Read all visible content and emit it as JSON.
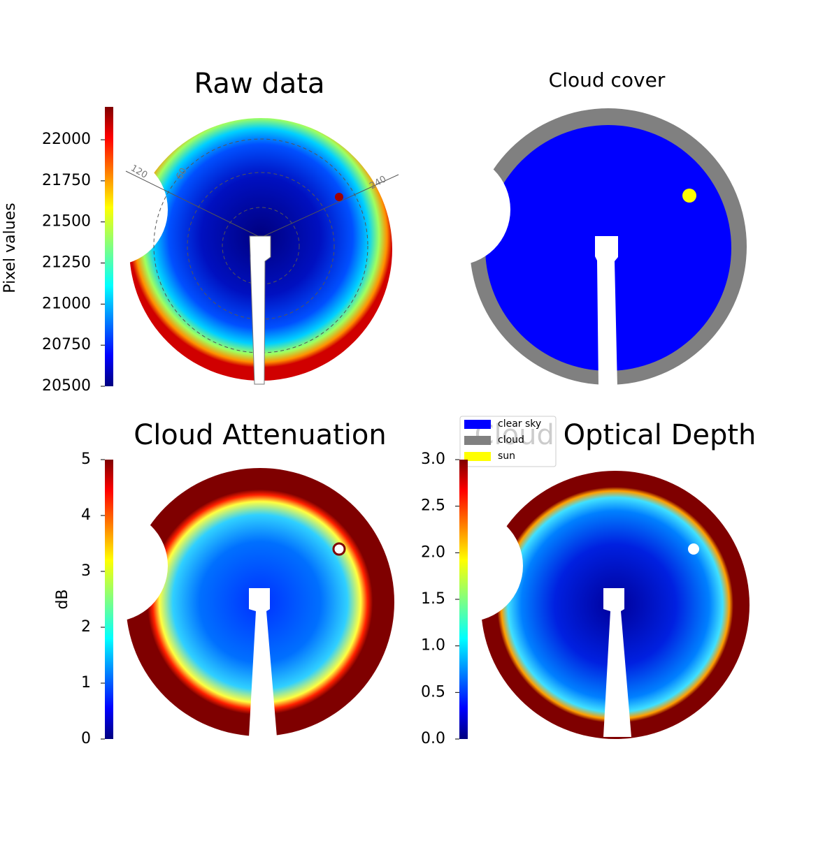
{
  "chart_data": [
    {
      "type": "image",
      "title": "Raw data",
      "cmap": "jet",
      "colorbar": {
        "label": "Pixel values",
        "lim": [
          20500,
          22200
        ],
        "ticks": [
          20500,
          20750,
          21000,
          21250,
          21500,
          21750,
          22000
        ]
      },
      "polar_labels": [
        "120",
        "60",
        "240"
      ]
    },
    {
      "type": "mask",
      "title": "Cloud cover",
      "legend": [
        {
          "name": "clear sky",
          "color": "#0000ff"
        },
        {
          "name": "cloud",
          "color": "#808080"
        },
        {
          "name": "sun",
          "color": "#ffff00"
        }
      ]
    },
    {
      "type": "image",
      "title": "Cloud Attenuation",
      "cmap": "jet",
      "colorbar": {
        "label": "dB",
        "lim": [
          0,
          5
        ],
        "ticks": [
          0,
          1,
          2,
          3,
          4,
          5
        ]
      }
    },
    {
      "type": "image",
      "title": "Cloud Optical Depth",
      "cmap": "jet",
      "colorbar": {
        "lim": [
          0,
          3
        ],
        "ticks": [
          {
            "value": 0,
            "label": "0.0"
          },
          0.5,
          {
            "value": 1,
            "label": "1.0"
          },
          1.5,
          {
            "value": 2,
            "label": "2.0"
          },
          2.5,
          {
            "value": 3,
            "label": "3.0"
          }
        ]
      }
    }
  ]
}
